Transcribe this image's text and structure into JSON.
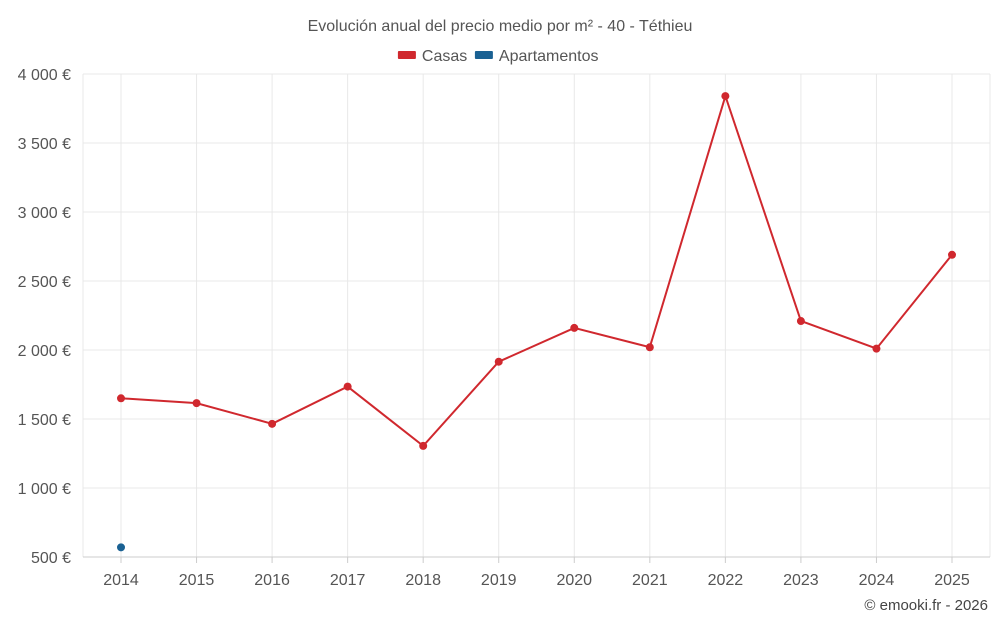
{
  "chart_data": {
    "type": "line",
    "title": "Evolución anual del precio medio por m² - 40 - Téthieu",
    "categories": [
      "2014",
      "2015",
      "2016",
      "2017",
      "2018",
      "2019",
      "2020",
      "2021",
      "2022",
      "2023",
      "2024",
      "2025"
    ],
    "y_ticks": [
      "500 €",
      "1 000 €",
      "1 500 €",
      "2 000 €",
      "2 500 €",
      "3 000 €",
      "3 500 €",
      "4 000 €"
    ],
    "ylim": [
      500,
      4000
    ],
    "grid": true,
    "legend_position": "top-center",
    "series": [
      {
        "name": "Casas",
        "color": "#d0282e",
        "values": [
          1650,
          1615,
          1465,
          1735,
          1305,
          1915,
          2160,
          2020,
          3840,
          2210,
          2010,
          2690
        ]
      },
      {
        "name": "Apartamentos",
        "color": "#1a6193",
        "values": [
          570,
          null,
          null,
          null,
          null,
          null,
          null,
          null,
          null,
          null,
          null,
          null
        ]
      }
    ],
    "credit": "© emooki.fr - 2026"
  }
}
